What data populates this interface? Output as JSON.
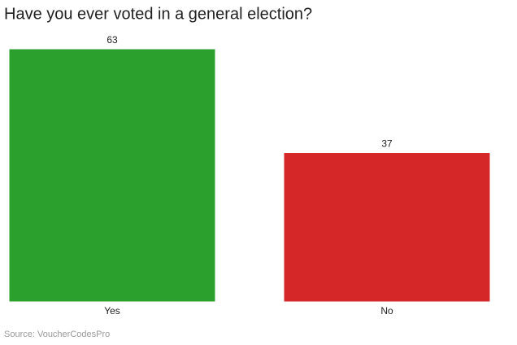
{
  "chart_data": {
    "type": "bar",
    "title": "Have you ever voted in a general election?",
    "categories": [
      "Yes",
      "No"
    ],
    "values": [
      63,
      37
    ],
    "colors": [
      "#2ca02c",
      "#d62728"
    ],
    "source": "Source: VoucherCodesPro"
  }
}
